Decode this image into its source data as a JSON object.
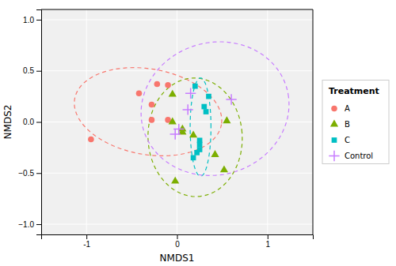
{
  "chart_data": {
    "type": "scatter",
    "xlabel": "NMDS1",
    "ylabel": "NMDS2",
    "xlim": [
      -1.5,
      1.5
    ],
    "ylim": [
      -1.1,
      1.1
    ],
    "xticks": [
      -1,
      0,
      1
    ],
    "yticks": [
      {
        "value": -1.0,
        "label": "−1.0"
      },
      {
        "value": -0.5,
        "label": "−0.5"
      },
      {
        "value": 0.0,
        "label": "0.0"
      },
      {
        "value": 0.5,
        "label": "0.5"
      },
      {
        "value": 1.0,
        "label": "1.0"
      }
    ],
    "grid": true,
    "legend": "right",
    "legend_title": "Treatment",
    "series": [
      {
        "name": "A",
        "color": "#F8766D",
        "marker": "circle",
        "x": [
          -0.95,
          -0.42,
          -0.22,
          -0.1,
          -0.28,
          -0.28,
          -0.1
        ],
        "values": [
          -0.17,
          0.28,
          0.37,
          0.36,
          0.17,
          0.02,
          0.02
        ],
        "ellipse": {
          "cx": -0.32,
          "cy": 0.1,
          "rx": 0.82,
          "ry": 0.42,
          "angle": -8
        }
      },
      {
        "name": "B",
        "color": "#7CAE00",
        "marker": "triangle",
        "x": [
          -0.05,
          -0.05,
          0.06,
          0.06,
          0.18,
          0.55,
          0.42,
          0.52,
          -0.02
        ],
        "values": [
          0.27,
          0.0,
          -0.07,
          -0.1,
          -0.13,
          0.01,
          -0.32,
          -0.47,
          -0.58
        ],
        "ellipse": {
          "cx": 0.2,
          "cy": -0.15,
          "rx": 0.52,
          "ry": 0.58,
          "angle": 5
        }
      },
      {
        "name": "C",
        "color": "#00BFC4",
        "marker": "square",
        "x": [
          0.2,
          0.35,
          0.3,
          0.32,
          0.25,
          0.25,
          0.25,
          0.18,
          0.22
        ],
        "values": [
          0.35,
          0.25,
          0.15,
          0.1,
          -0.18,
          -0.22,
          -0.27,
          -0.35,
          -0.3
        ],
        "ellipse": {
          "cx": 0.26,
          "cy": -0.05,
          "rx": 0.115,
          "ry": 0.48,
          "angle": 0
        }
      },
      {
        "name": "Control",
        "color": "#C77CFF",
        "marker": "plus",
        "x": [
          0.02,
          -0.02,
          0.12,
          0.15,
          0.6
        ],
        "values": [
          -0.07,
          -0.12,
          0.12,
          0.28,
          0.22
        ],
        "ellipse": {
          "cx": 0.42,
          "cy": 0.13,
          "rx": 0.82,
          "ry": 0.65,
          "angle": 8
        }
      }
    ]
  }
}
